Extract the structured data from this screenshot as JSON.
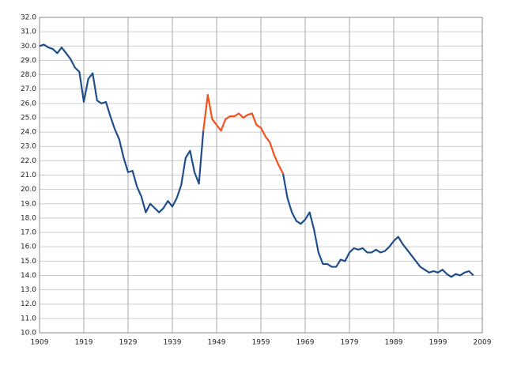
{
  "chart_data": {
    "type": "line",
    "x": [
      1909,
      1910,
      1911,
      1912,
      1913,
      1914,
      1915,
      1916,
      1917,
      1918,
      1919,
      1920,
      1921,
      1922,
      1923,
      1924,
      1925,
      1926,
      1927,
      1928,
      1929,
      1930,
      1931,
      1932,
      1933,
      1934,
      1935,
      1936,
      1937,
      1938,
      1939,
      1940,
      1941,
      1942,
      1943,
      1944,
      1945,
      1946,
      1947,
      1948,
      1949,
      1950,
      1951,
      1952,
      1953,
      1954,
      1955,
      1956,
      1957,
      1958,
      1959,
      1960,
      1961,
      1962,
      1963,
      1964,
      1965,
      1966,
      1967,
      1968,
      1969,
      1970,
      1971,
      1972,
      1973,
      1974,
      1975,
      1976,
      1977,
      1978,
      1979,
      1980,
      1981,
      1982,
      1983,
      1984,
      1985,
      1986,
      1987,
      1988,
      1989,
      1990,
      1991,
      1992,
      1993,
      1994,
      1995,
      1996,
      1997,
      1998,
      1999,
      2000,
      2001,
      2002,
      2003,
      2004,
      2005,
      2006,
      2007
    ],
    "series": [
      {
        "color": "#1f4e8c",
        "values": [
          30.0,
          30.1,
          29.9,
          29.8,
          29.5,
          29.9,
          29.5,
          29.1,
          28.5,
          28.2,
          26.1,
          27.7,
          28.1,
          26.2,
          26.0,
          26.1,
          25.1,
          24.2,
          23.5,
          22.2,
          21.2,
          21.3,
          20.2,
          19.5,
          18.4,
          19.0,
          18.7,
          18.4,
          18.7,
          19.2,
          18.8,
          19.4,
          20.3,
          22.2,
          22.7,
          21.2,
          20.4,
          24.1,
          null,
          null,
          null,
          null,
          null,
          null,
          null,
          null,
          null,
          null,
          null,
          null,
          null,
          null,
          null,
          null,
          null,
          21.1,
          19.4,
          18.4,
          17.8,
          17.6,
          17.9,
          18.4,
          17.2,
          15.6,
          14.8,
          14.8,
          14.6,
          14.6,
          15.1,
          15.0,
          15.6,
          15.9,
          15.8,
          15.9,
          15.6,
          15.6,
          15.8,
          15.6,
          15.7,
          16.0,
          16.4,
          16.7,
          16.2,
          15.8,
          15.4,
          15.0,
          14.6,
          14.4,
          14.2,
          14.3,
          14.2,
          14.4,
          14.1,
          13.9,
          14.1,
          14.0,
          14.2,
          14.3,
          14.0
        ]
      },
      {
        "color": "#f4511e",
        "values": [
          null,
          null,
          null,
          null,
          null,
          null,
          null,
          null,
          null,
          null,
          null,
          null,
          null,
          null,
          null,
          null,
          null,
          null,
          null,
          null,
          null,
          null,
          null,
          null,
          null,
          null,
          null,
          null,
          null,
          null,
          null,
          null,
          null,
          null,
          null,
          null,
          null,
          24.1,
          26.6,
          24.9,
          24.5,
          24.1,
          24.9,
          25.1,
          25.1,
          25.3,
          25.0,
          25.2,
          25.3,
          24.5,
          24.3,
          23.7,
          23.3,
          22.4,
          21.7,
          21.1,
          null,
          null,
          null,
          null,
          null,
          null,
          null,
          null,
          null,
          null,
          null,
          null,
          null,
          null,
          null,
          null,
          null,
          null,
          null,
          null,
          null,
          null,
          null,
          null,
          null,
          null,
          null,
          null,
          null,
          null,
          null,
          null,
          null,
          null,
          null,
          null,
          null,
          null,
          null,
          null,
          null,
          null,
          null
        ]
      }
    ],
    "xlim": [
      1909,
      2009
    ],
    "xticks": [
      1909,
      1919,
      1929,
      1939,
      1949,
      1959,
      1969,
      1979,
      1989,
      1999,
      2009
    ],
    "ylim": [
      10,
      32
    ],
    "yticks": [
      {
        "value": 10,
        "label": "10.0"
      },
      {
        "value": 11,
        "label": "11.0"
      },
      {
        "value": 12,
        "label": "12.0"
      },
      {
        "value": 13,
        "label": "13.0"
      },
      {
        "value": 14,
        "label": "14.0"
      },
      {
        "value": 15,
        "label": "15.0"
      },
      {
        "value": 16,
        "label": "16.0"
      },
      {
        "value": 17,
        "label": "17.0"
      },
      {
        "value": 18,
        "label": "18.0"
      },
      {
        "value": 19,
        "label": "19.0"
      },
      {
        "value": 20,
        "label": "20.0"
      },
      {
        "value": 21,
        "label": "21.0"
      },
      {
        "value": 22,
        "label": "22.0"
      },
      {
        "value": 23,
        "label": "23.0"
      },
      {
        "value": 24,
        "label": "24.0"
      },
      {
        "value": 25,
        "label": "25.0"
      },
      {
        "value": 26,
        "label": "26.0"
      },
      {
        "value": 27,
        "label": "27.0"
      },
      {
        "value": 28,
        "label": "28.0"
      },
      {
        "value": 29,
        "label": "29.0"
      },
      {
        "value": 30,
        "label": "30.0"
      },
      {
        "value": 31,
        "label": "31.0"
      },
      {
        "value": 32,
        "label": "32.0"
      }
    ],
    "grid": true
  }
}
